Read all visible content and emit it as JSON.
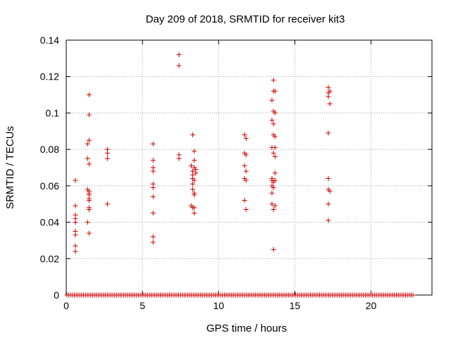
{
  "chart_data": {
    "type": "scatter",
    "title": "Day 209 of 2018, SRMTID for receiver kit3",
    "xlabel": "GPS time / hours",
    "ylabel": "SRMTID / TECUs",
    "xlim": [
      0,
      24
    ],
    "ylim": [
      0,
      0.14
    ],
    "grid": true,
    "marker": "+",
    "color": "#d00000",
    "x_ticks": [
      0,
      5,
      10,
      15,
      20
    ],
    "x_tick_labels": [
      "0",
      "5",
      "10",
      "15",
      "20"
    ],
    "y_ticks": [
      0,
      0.02,
      0.04,
      0.06,
      0.08,
      0.1,
      0.12,
      0.14
    ],
    "y_tick_labels": [
      "0",
      "0.02",
      "0.04",
      "0.06",
      "0.08",
      "0.1",
      "0.12",
      "0.14"
    ],
    "points": [
      [
        0.6,
        0.063
      ],
      [
        0.6,
        0.049
      ],
      [
        0.6,
        0.044
      ],
      [
        0.6,
        0.042
      ],
      [
        0.6,
        0.04
      ],
      [
        0.6,
        0.035
      ],
      [
        0.6,
        0.033
      ],
      [
        0.6,
        0.027
      ],
      [
        0.6,
        0.024
      ],
      [
        1.4,
        0.083
      ],
      [
        1.4,
        0.075
      ],
      [
        1.4,
        0.058
      ],
      [
        1.5,
        0.057
      ],
      [
        1.5,
        0.053
      ],
      [
        1.5,
        0.052
      ],
      [
        1.5,
        0.048
      ],
      [
        1.5,
        0.047
      ],
      [
        1.4,
        0.04
      ],
      [
        1.5,
        0.11
      ],
      [
        1.5,
        0.099
      ],
      [
        1.5,
        0.085
      ],
      [
        1.5,
        0.072
      ],
      [
        1.5,
        0.056
      ],
      [
        1.5,
        0.055
      ],
      [
        1.5,
        0.047
      ],
      [
        1.5,
        0.034
      ],
      [
        2.7,
        0.08
      ],
      [
        2.7,
        0.078
      ],
      [
        2.7,
        0.075
      ],
      [
        2.7,
        0.05
      ],
      [
        5.7,
        0.083
      ],
      [
        5.7,
        0.074
      ],
      [
        5.7,
        0.07
      ],
      [
        5.7,
        0.068
      ],
      [
        5.7,
        0.061
      ],
      [
        5.7,
        0.059
      ],
      [
        5.7,
        0.054
      ],
      [
        5.7,
        0.045
      ],
      [
        5.7,
        0.032
      ],
      [
        5.7,
        0.029
      ],
      [
        7.4,
        0.132
      ],
      [
        7.4,
        0.126
      ],
      [
        7.4,
        0.077
      ],
      [
        7.4,
        0.075
      ],
      [
        8.2,
        0.071
      ],
      [
        8.2,
        0.049
      ],
      [
        8.3,
        0.088
      ],
      [
        8.3,
        0.068
      ],
      [
        8.3,
        0.066
      ],
      [
        8.3,
        0.064
      ],
      [
        8.3,
        0.061
      ],
      [
        8.3,
        0.058
      ],
      [
        8.3,
        0.048
      ],
      [
        8.4,
        0.079
      ],
      [
        8.4,
        0.074
      ],
      [
        8.4,
        0.07
      ],
      [
        8.4,
        0.063
      ],
      [
        8.4,
        0.056
      ],
      [
        8.4,
        0.055
      ],
      [
        8.4,
        0.048
      ],
      [
        8.4,
        0.045
      ],
      [
        8.5,
        0.069
      ],
      [
        8.5,
        0.067
      ],
      [
        11.7,
        0.088
      ],
      [
        11.7,
        0.078
      ],
      [
        11.7,
        0.071
      ],
      [
        11.7,
        0.064
      ],
      [
        11.7,
        0.052
      ],
      [
        11.8,
        0.086
      ],
      [
        11.8,
        0.077
      ],
      [
        11.8,
        0.068
      ],
      [
        11.8,
        0.063
      ],
      [
        11.8,
        0.047
      ],
      [
        13.5,
        0.107
      ],
      [
        13.5,
        0.096
      ],
      [
        13.5,
        0.081
      ],
      [
        13.5,
        0.064
      ],
      [
        13.5,
        0.063
      ],
      [
        13.5,
        0.06
      ],
      [
        13.5,
        0.056
      ],
      [
        13.5,
        0.05
      ],
      [
        13.6,
        0.118
      ],
      [
        13.6,
        0.112
      ],
      [
        13.6,
        0.101
      ],
      [
        13.6,
        0.094
      ],
      [
        13.6,
        0.088
      ],
      [
        13.6,
        0.078
      ],
      [
        13.6,
        0.062
      ],
      [
        13.6,
        0.059
      ],
      [
        13.6,
        0.047
      ],
      [
        13.6,
        0.025
      ],
      [
        13.7,
        0.112
      ],
      [
        13.7,
        0.1
      ],
      [
        13.7,
        0.087
      ],
      [
        13.7,
        0.081
      ],
      [
        13.7,
        0.076
      ],
      [
        13.7,
        0.067
      ],
      [
        13.7,
        0.063
      ],
      [
        13.7,
        0.049
      ],
      [
        17.2,
        0.114
      ],
      [
        17.2,
        0.111
      ],
      [
        17.2,
        0.109
      ],
      [
        17.2,
        0.089
      ],
      [
        17.2,
        0.064
      ],
      [
        17.2,
        0.058
      ],
      [
        17.2,
        0.05
      ],
      [
        17.2,
        0.041
      ],
      [
        17.3,
        0.112
      ],
      [
        17.3,
        0.105
      ],
      [
        17.3,
        0.057
      ]
    ],
    "zero_points_x_range": [
      0.05,
      22.75
    ],
    "zero_points_count": 190
  }
}
